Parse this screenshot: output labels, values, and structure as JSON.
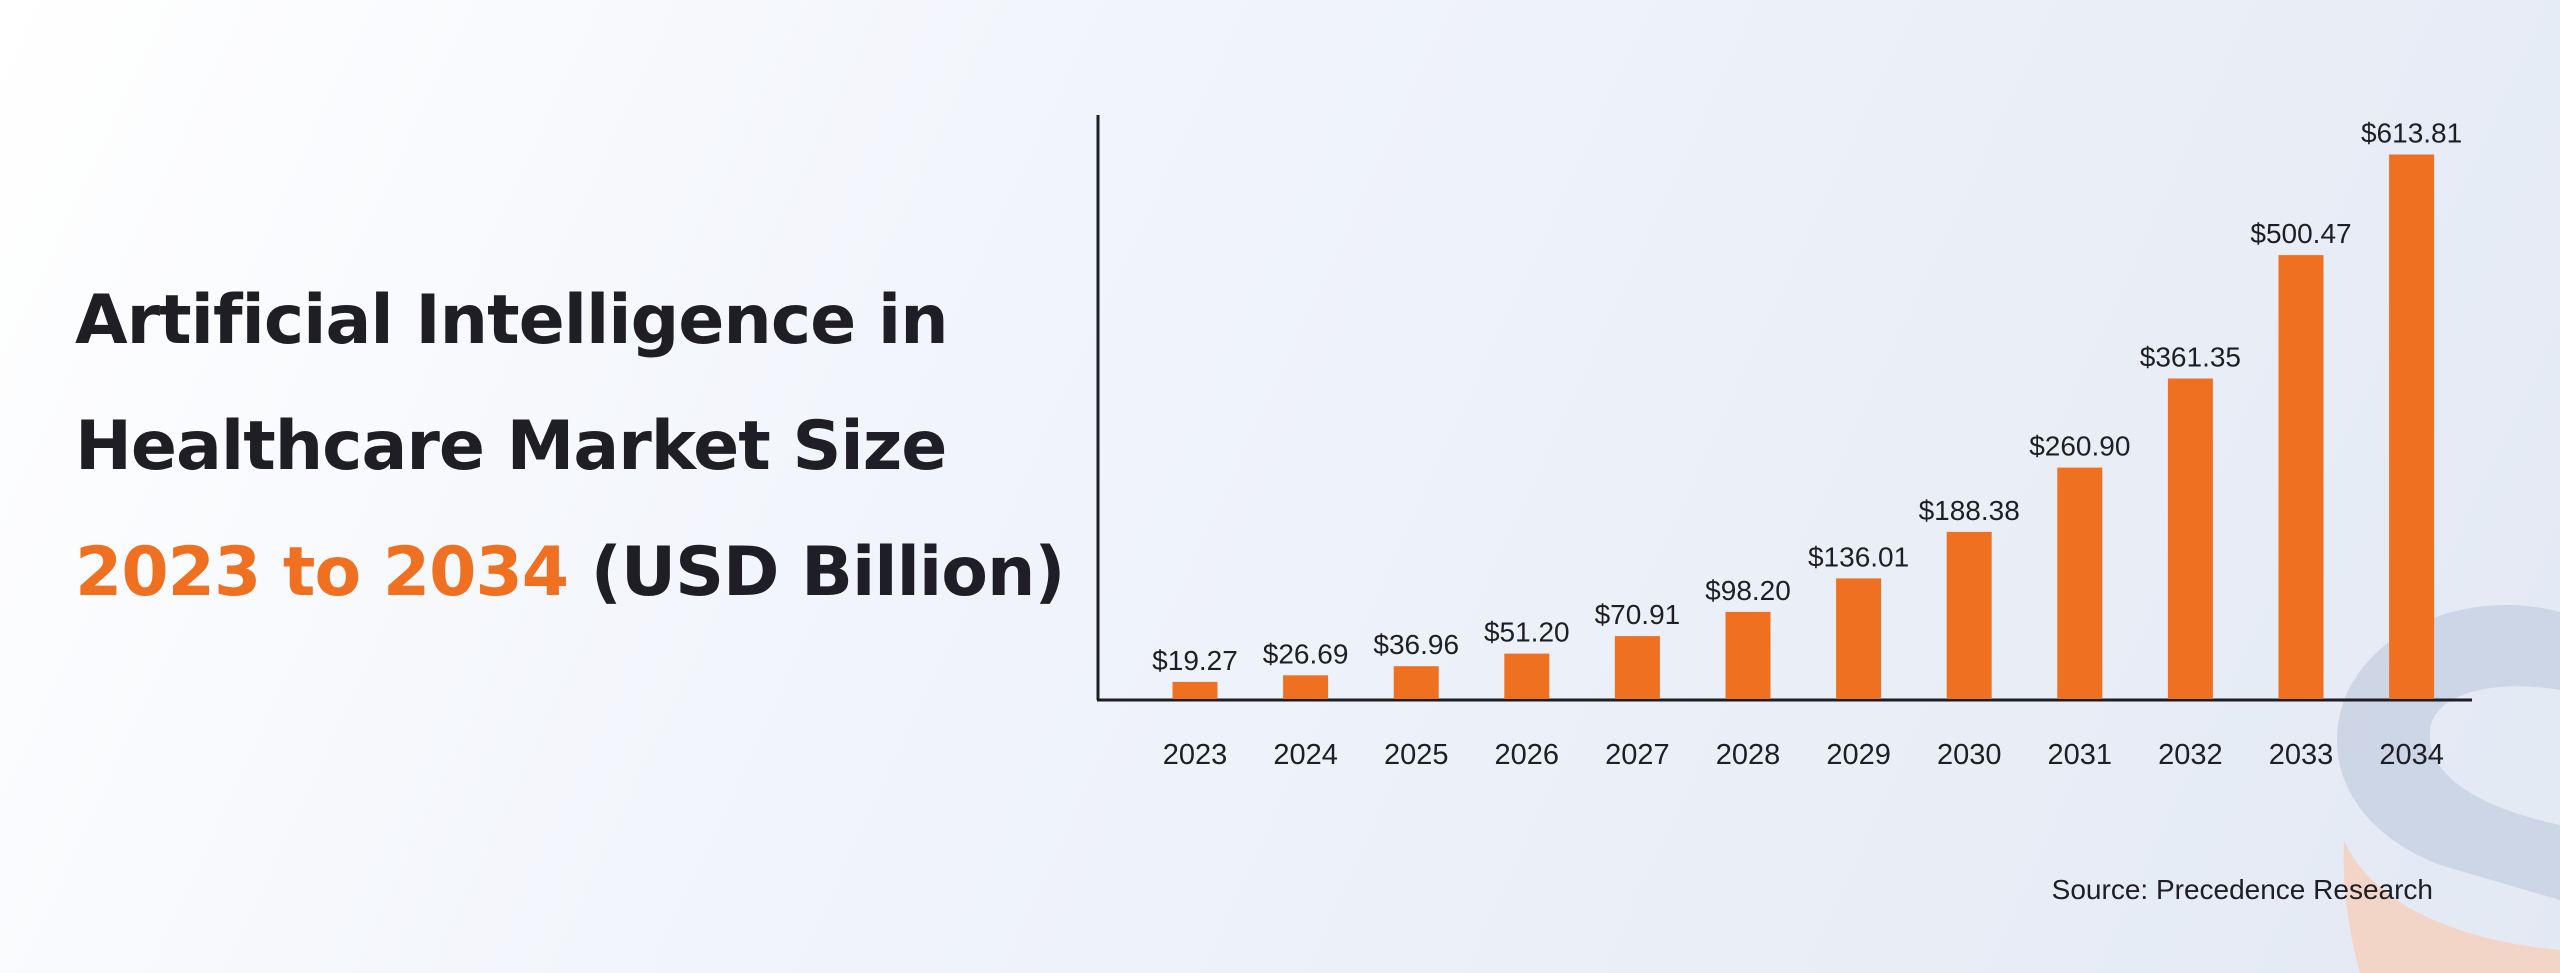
{
  "title": {
    "line1": "Artificial Intelligence in",
    "line2": "Healthcare Market Size",
    "line3_accent": "2023 to 2034",
    "line3_rest": "(USD Billion)"
  },
  "source": "Source: Precedence Research",
  "colors": {
    "accent": "#f07022",
    "text": "#1e1e24",
    "watermark_blue": "#c9d2e3",
    "watermark_orange": "#f6d0bd"
  },
  "chart_data": {
    "type": "bar",
    "categories": [
      "2023",
      "2024",
      "2025",
      "2026",
      "2027",
      "2028",
      "2029",
      "2030",
      "2031",
      "2032",
      "2033",
      "2034"
    ],
    "values": [
      19.27,
      26.69,
      36.96,
      51.2,
      70.91,
      98.2,
      136.01,
      188.38,
      260.9,
      361.35,
      500.47,
      613.81
    ],
    "data_labels": [
      "$19.27",
      "$26.69",
      "$36.96",
      "$51.20",
      "$70.91",
      "$98.20",
      "$136.01",
      "$188.38",
      "$260.90",
      "$361.35",
      "$500.47",
      "$613.81"
    ],
    "xlabel": "",
    "ylabel": "",
    "ylim": [
      0,
      655
    ],
    "grid": false,
    "bar_color": "#f07022"
  }
}
